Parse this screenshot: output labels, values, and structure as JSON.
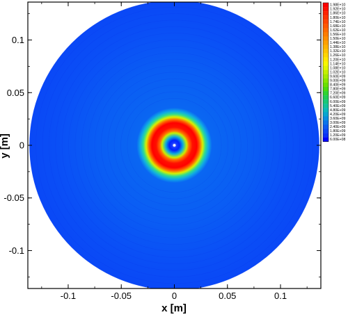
{
  "chart_data": {
    "type": "heatmap",
    "title": "",
    "xlabel": "x [m]",
    "ylabel": "y [m]",
    "xlim": [
      -0.138,
      0.138
    ],
    "ylim": [
      -0.136,
      0.136
    ],
    "x_ticks": [
      -0.1,
      -0.05,
      0,
      0.05,
      0.1
    ],
    "x_tick_labels": [
      "-0.1",
      "-0.05",
      "0",
      "0.05",
      "0.1"
    ],
    "y_ticks": [
      0.1,
      0.05,
      0,
      -0.05,
      -0.1
    ],
    "y_tick_labels": [
      "0.1",
      "0.05",
      "0",
      "-0.05",
      "-0.1"
    ],
    "domain_radius": 0.1365,
    "colorbar": {
      "placement": "right",
      "levels": [
        "1.98E+10",
        "1.92E+10",
        "1.86E+10",
        "1.80E+10",
        "1.74E+10",
        "1.68E+10",
        "1.62E+10",
        "1.56E+10",
        "1.50E+10",
        "1.44E+10",
        "1.38E+10",
        "1.32E+10",
        "1.26E+10",
        "1.20E+10",
        "1.14E+10",
        "1.08E+10",
        "1.02E+10",
        "9.60E+09",
        "9.00E+09",
        "8.40E+09",
        "7.80E+09",
        "7.20E+09",
        "6.60E+09",
        "6.00E+09",
        "5.40E+09",
        "4.80E+09",
        "4.20E+09",
        "3.60E+09",
        "3.00E+09",
        "2.40E+09",
        "1.80E+09",
        "1.20E+09",
        "6.00E+08"
      ],
      "colors": [
        "#ff0000",
        "#ff1000",
        "#ff2200",
        "#ff3300",
        "#ff4500",
        "#ff5800",
        "#ff6a00",
        "#ff7c00",
        "#ff8e00",
        "#ffa000",
        "#ffb200",
        "#ffc400",
        "#ffd600",
        "#ffe800",
        "#f7f700",
        "#e0f500",
        "#c4f000",
        "#a6eb00",
        "#88e600",
        "#6ae000",
        "#4cda10",
        "#30d430",
        "#20ce55",
        "#18c878",
        "#12c29a",
        "#0cb8bc",
        "#08a6d0",
        "#0a8ee0",
        "#0c74ea",
        "#0e5af2",
        "#0e46f6",
        "#0a32f8",
        "#0000ff"
      ]
    },
    "radial_profile": [
      {
        "r": 0.0,
        "value": 600000000.0
      },
      {
        "r": 0.003,
        "value": 1200000000.0
      },
      {
        "r": 0.006,
        "value": 9000000000.0
      },
      {
        "r": 0.01,
        "value": 10000000000.0
      },
      {
        "r": 0.013,
        "value": 19200000000.0
      },
      {
        "r": 0.018,
        "value": 19800000000.0
      },
      {
        "r": 0.023,
        "value": 18000000000.0
      },
      {
        "r": 0.027,
        "value": 12000000000.0
      },
      {
        "r": 0.031,
        "value": 6000000000.0
      },
      {
        "r": 0.035,
        "value": 3600000000.0
      },
      {
        "r": 0.08,
        "value": 3000000000.0
      },
      {
        "r": 0.1365,
        "value": 3000000000.0
      }
    ],
    "grid": false
  }
}
